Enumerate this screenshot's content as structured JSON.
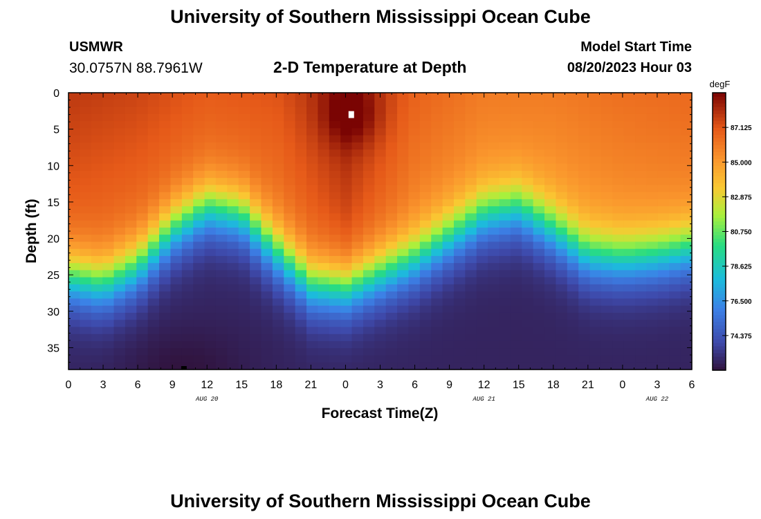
{
  "page": {
    "title": "University of Southern Mississippi Ocean Cube",
    "station_name": "USMWR",
    "station_coords": "30.0757N  88.7961W",
    "plot_title": "2-D Temperature at Depth",
    "model_start_label": "Model Start Time",
    "model_start_value": "08/20/2023 Hour 03",
    "footer_title": "University of Southern Mississippi Ocean Cube"
  },
  "chart_data": {
    "type": "heatmap",
    "title": "2-D Temperature at Depth",
    "xlabel": "Forecast Time(Z)",
    "ylabel": "Depth (ft)",
    "x_tick_labels": [
      "0",
      "3",
      "6",
      "9",
      "12",
      "15",
      "18",
      "21",
      "0",
      "3",
      "6",
      "9",
      "12",
      "15",
      "18",
      "21",
      "0",
      "3",
      "6"
    ],
    "x_range_hours": [
      0,
      54
    ],
    "date_labels": [
      {
        "label": "AUG 20",
        "hour": 12
      },
      {
        "label": "AUG 21",
        "hour": 36
      },
      {
        "label": "AUG 22",
        "hour": 51
      }
    ],
    "y_tick_labels": [
      "0",
      "5",
      "10",
      "15",
      "20",
      "25",
      "30",
      "35"
    ],
    "y_ticks": [
      0,
      5,
      10,
      15,
      20,
      25,
      30,
      35
    ],
    "ylim": [
      0,
      38
    ],
    "colorbar": {
      "unit": "degF",
      "min": 72.25,
      "max": 89.25,
      "tick_labels": [
        "87.125",
        "85.000",
        "82.875",
        "80.750",
        "78.625",
        "76.500",
        "74.375"
      ],
      "tick_values": [
        87.125,
        85.0,
        82.875,
        80.75,
        78.625,
        76.5,
        74.375
      ]
    },
    "grid_resolution": {
      "time_cols": 55,
      "depth_rows": 39
    },
    "thermocline_depth_ft": [
      {
        "hour": 0,
        "depth": 25.5
      },
      {
        "hour": 3,
        "depth": 26.5
      },
      {
        "hour": 6,
        "depth": 24
      },
      {
        "hour": 9,
        "depth": 19
      },
      {
        "hour": 12,
        "depth": 16
      },
      {
        "hour": 15,
        "depth": 17
      },
      {
        "hour": 18,
        "depth": 22
      },
      {
        "hour": 21,
        "depth": 26.5
      },
      {
        "hour": 24,
        "depth": 27
      },
      {
        "hour": 27,
        "depth": 25
      },
      {
        "hour": 30,
        "depth": 23
      },
      {
        "hour": 33,
        "depth": 20
      },
      {
        "hour": 36,
        "depth": 17
      },
      {
        "hour": 39,
        "depth": 16
      },
      {
        "hour": 42,
        "depth": 19
      },
      {
        "hour": 45,
        "depth": 22.5
      },
      {
        "hour": 48,
        "depth": 23
      },
      {
        "hour": 51,
        "depth": 22.5
      },
      {
        "hour": 54,
        "depth": 21.5
      }
    ],
    "surface_temp_degF": [
      {
        "hour": 0,
        "temp": 87.9
      },
      {
        "hour": 6,
        "temp": 87.6
      },
      {
        "hour": 12,
        "temp": 87.0
      },
      {
        "hour": 18,
        "temp": 87.2
      },
      {
        "hour": 24,
        "temp": 88.6
      },
      {
        "hour": 30,
        "temp": 86.8
      },
      {
        "hour": 36,
        "temp": 86.0
      },
      {
        "hour": 42,
        "temp": 86.0
      },
      {
        "hour": 48,
        "temp": 86.4
      },
      {
        "hour": 54,
        "temp": 86.6
      }
    ],
    "bottom_temp_degF": 72.8,
    "markers": [
      {
        "name": "surface-max-marker",
        "hour": 24.5,
        "depth": 3,
        "color": "#ffffff"
      },
      {
        "name": "bottom-min-marker",
        "hour": 10,
        "depth": 38,
        "color": "#000000"
      }
    ]
  }
}
